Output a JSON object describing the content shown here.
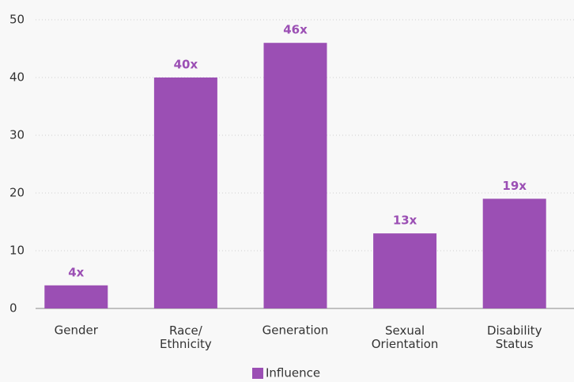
{
  "chart_data": {
    "type": "bar",
    "categories": [
      "Gender",
      "Race/\nEthnicity",
      "Generation",
      "Sexual\nOrientation",
      "Disability\nStatus"
    ],
    "series": [
      {
        "name": "Influence",
        "color": "#9b4fb4",
        "values": [
          4,
          40,
          46,
          13,
          19
        ],
        "value_labels": [
          "4x",
          "40x",
          "46x",
          "13x",
          "19x"
        ]
      }
    ],
    "ylim": [
      0,
      50
    ],
    "yticks": [
      0,
      10,
      20,
      30,
      40,
      50
    ],
    "grid": true,
    "legend": "bottom"
  }
}
